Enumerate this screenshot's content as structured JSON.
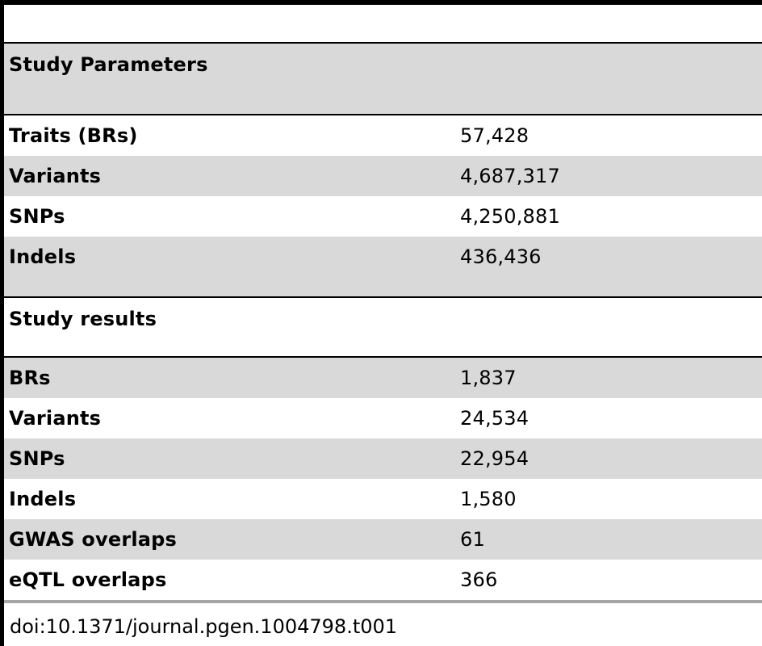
{
  "sections": [
    {
      "title": "Study Parameters",
      "rows": [
        {
          "label": "Traits (BRs)",
          "value": "57,428"
        },
        {
          "label": "Variants",
          "value": "4,687,317"
        },
        {
          "label": "SNPs",
          "value": "4,250,881"
        },
        {
          "label": "Indels",
          "value": "436,436"
        }
      ]
    },
    {
      "title": "Study results",
      "rows": [
        {
          "label": "BRs",
          "value": "1,837"
        },
        {
          "label": "Variants",
          "value": "24,534"
        },
        {
          "label": "SNPs",
          "value": "22,954"
        },
        {
          "label": "Indels",
          "value": "1,580"
        },
        {
          "label": "GWAS overlaps",
          "value": "61"
        },
        {
          "label": "eQTL overlaps",
          "value": "366"
        }
      ]
    }
  ],
  "doi": "doi:10.1371/journal.pgen.1004798.t001"
}
